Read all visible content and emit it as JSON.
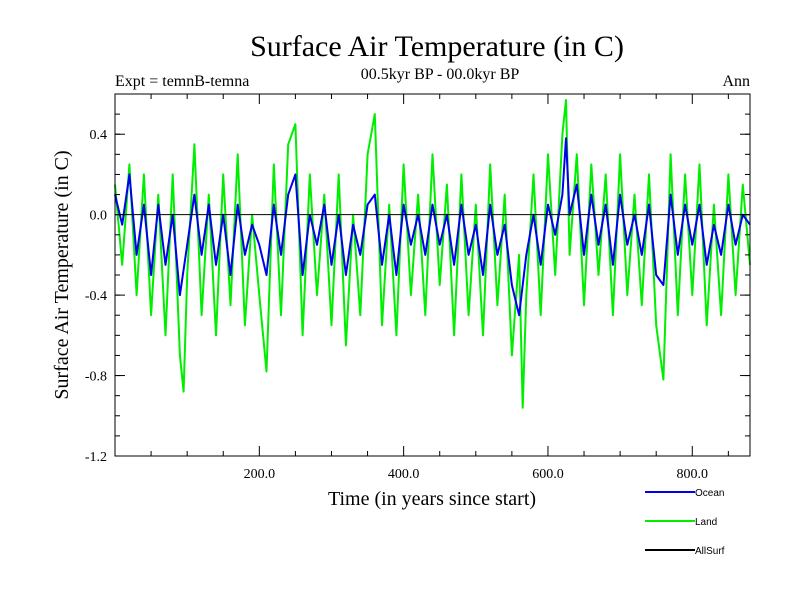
{
  "chart_data": {
    "type": "line",
    "title": "Surface Air Temperature (in C)",
    "subtitle": "00.5kyr BP - 00.0kyr BP",
    "experiment_label": "Expt = temnB-temna",
    "period_label": "Ann",
    "xlabel": "Time (in years since start)",
    "ylabel": "Surface Air Temperature (in C)",
    "xlim": [
      0,
      880
    ],
    "ylim": [
      -1.2,
      0.6
    ],
    "x_ticks": [
      200,
      400,
      600,
      800
    ],
    "x_tick_labels": [
      "200.0",
      "400.0",
      "600.0",
      "800.0"
    ],
    "y_ticks": [
      -1.2,
      -0.8,
      -0.4,
      0.0,
      0.4
    ],
    "y_tick_labels": [
      "-1.2",
      "-0.8",
      "-0.4",
      "0.0",
      "0.4"
    ],
    "legend_position": "bottom-right",
    "series": [
      {
        "name": "Land",
        "color": "#00ee00",
        "x": [
          0,
          10,
          20,
          30,
          40,
          50,
          60,
          70,
          80,
          90,
          95,
          100,
          110,
          120,
          130,
          140,
          150,
          160,
          170,
          180,
          190,
          200,
          210,
          220,
          230,
          240,
          250,
          260,
          270,
          280,
          290,
          300,
          310,
          320,
          330,
          340,
          350,
          360,
          370,
          380,
          390,
          400,
          410,
          420,
          430,
          440,
          450,
          460,
          470,
          480,
          490,
          500,
          510,
          520,
          530,
          540,
          550,
          560,
          565,
          570,
          580,
          590,
          600,
          610,
          620,
          625,
          630,
          640,
          650,
          660,
          670,
          680,
          690,
          700,
          710,
          720,
          730,
          740,
          750,
          760,
          770,
          780,
          790,
          800,
          810,
          820,
          830,
          840,
          850,
          860,
          870,
          880
        ],
        "values": [
          0.15,
          -0.25,
          0.25,
          -0.4,
          0.2,
          -0.5,
          0.1,
          -0.6,
          0.2,
          -0.7,
          -0.88,
          -0.3,
          0.35,
          -0.5,
          0.1,
          -0.6,
          0.2,
          -0.45,
          0.3,
          -0.55,
          0.0,
          -0.4,
          -0.78,
          0.25,
          -0.5,
          0.35,
          0.45,
          -0.6,
          0.2,
          -0.4,
          0.1,
          -0.55,
          0.2,
          -0.65,
          0.0,
          -0.5,
          0.3,
          0.5,
          -0.55,
          0.05,
          -0.6,
          0.25,
          -0.4,
          0.1,
          -0.5,
          0.3,
          -0.35,
          0.15,
          -0.6,
          0.2,
          -0.5,
          0.05,
          -0.6,
          0.25,
          -0.45,
          0.1,
          -0.7,
          -0.2,
          -0.96,
          -0.4,
          0.2,
          -0.5,
          0.3,
          -0.3,
          0.4,
          0.57,
          -0.2,
          0.3,
          -0.45,
          0.25,
          -0.3,
          0.2,
          -0.5,
          0.3,
          -0.4,
          0.1,
          -0.45,
          0.2,
          -0.55,
          -0.82,
          0.3,
          -0.5,
          0.2,
          -0.4,
          0.25,
          -0.55,
          0.05,
          -0.5,
          0.2,
          -0.4,
          0.15,
          -0.25
        ]
      },
      {
        "name": "Ocean",
        "color": "#0000ee",
        "x": [
          0,
          10,
          20,
          30,
          40,
          50,
          60,
          70,
          80,
          90,
          100,
          110,
          120,
          130,
          140,
          150,
          160,
          170,
          180,
          190,
          200,
          210,
          220,
          230,
          240,
          250,
          260,
          270,
          280,
          290,
          300,
          310,
          320,
          330,
          340,
          350,
          360,
          370,
          380,
          390,
          400,
          410,
          420,
          430,
          440,
          450,
          460,
          470,
          480,
          490,
          500,
          510,
          520,
          530,
          540,
          550,
          560,
          570,
          580,
          590,
          600,
          610,
          620,
          625,
          630,
          640,
          650,
          660,
          670,
          680,
          690,
          700,
          710,
          720,
          730,
          740,
          750,
          760,
          770,
          780,
          790,
          800,
          810,
          820,
          830,
          840,
          850,
          860,
          870,
          880
        ],
        "values": [
          0.1,
          -0.05,
          0.2,
          -0.2,
          0.05,
          -0.3,
          0.05,
          -0.25,
          0.0,
          -0.4,
          -0.15,
          0.1,
          -0.2,
          0.05,
          -0.25,
          0.0,
          -0.3,
          0.05,
          -0.2,
          -0.05,
          -0.15,
          -0.3,
          0.05,
          -0.2,
          0.1,
          0.2,
          -0.3,
          0.0,
          -0.15,
          0.05,
          -0.25,
          0.0,
          -0.3,
          -0.05,
          -0.2,
          0.05,
          0.1,
          -0.25,
          0.0,
          -0.3,
          0.05,
          -0.15,
          0.0,
          -0.2,
          0.05,
          -0.15,
          0.0,
          -0.25,
          0.05,
          -0.2,
          -0.05,
          -0.3,
          0.05,
          -0.2,
          -0.05,
          -0.35,
          -0.5,
          -0.2,
          0.0,
          -0.25,
          0.05,
          -0.1,
          0.1,
          0.38,
          0.0,
          0.15,
          -0.2,
          0.1,
          -0.15,
          0.05,
          -0.25,
          0.1,
          -0.15,
          0.0,
          -0.2,
          0.05,
          -0.3,
          -0.35,
          0.1,
          -0.2,
          0.05,
          -0.15,
          0.05,
          -0.25,
          -0.05,
          -0.2,
          0.05,
          -0.15,
          0.0,
          -0.05
        ]
      },
      {
        "name": "AllSurf",
        "color": "#000000",
        "x": [
          0,
          880
        ],
        "values": [
          0.0,
          0.0
        ]
      }
    ]
  }
}
